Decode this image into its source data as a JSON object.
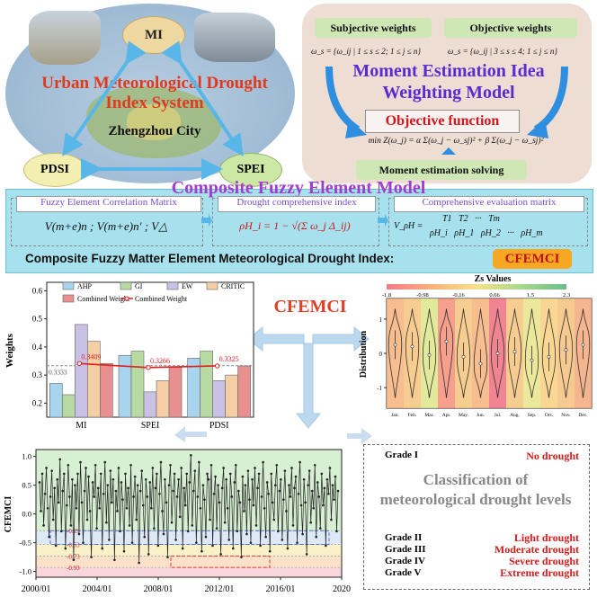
{
  "index_system": {
    "title_line1": "Urban Meteorological Drought",
    "title_line2": "Index System",
    "city": "Zhengzhou City",
    "nodes": [
      "MI",
      "PDSI",
      "SPEI"
    ]
  },
  "weighting": {
    "subjective": "Subjective weights",
    "objective": "Objective weights",
    "formula_subjective": "ω_s = {ω_ij | 1 ≤ s ≤ 2; 1 ≤ j ≤ n}",
    "formula_objective": "ω_s = {ω_ij | 3 ≤ s ≤ 4; 1 ≤ j ≤ n}",
    "title_line1": "Moment Estimation Idea",
    "title_line2": "Weighting Model",
    "objective_function": "Objective function",
    "min_formula": "min Z(ω_j) = α Σ(ω_j − ω_sj)² + β Σ(ω_j − ω_sj)²",
    "solving": "Moment estimation solving"
  },
  "composite": {
    "title": "Composite Fuzzy Element Model",
    "box1_title": "Fuzzy Element Correlation Matrix",
    "box1_formula": "V(m+e)n ; V(m+e)n′ ; V△",
    "box2_title": "Drought comprehensive index",
    "box2_formula": "ρH_i = 1 − √(Σ ω_j Δ_ij)",
    "box3_title": "Comprehensive evaluation matrix",
    "box3_header": "T1   T2   ···   Tm",
    "box3_row": "ρH_i   ρH_1   ρH_2   ···   ρH_m",
    "box3_label": "V_ρH =",
    "banner": "Composite Fuzzy Matter Element Meteorological Drought Index:",
    "badge": "CFEMCI"
  },
  "center_label": "CFEMCI",
  "weights_chart": {
    "ylabel": "Weights",
    "legend": [
      "AHP",
      "GI",
      "EW",
      "CRITIC",
      "Combined Weight",
      "Combined Weight"
    ],
    "baseline_label": "0.3333",
    "combined_labels": [
      "0.3409",
      "0.3266",
      "0.3325"
    ],
    "colors": {
      "AHP": "#a9d4ee",
      "GI": "#b7d9a2",
      "EW": "#c9c1e6",
      "CRITIC": "#f4cfa6",
      "Combined": "#e88f8f",
      "line": "#e02020"
    }
  },
  "violin_chart": {
    "colorbar_title": "Zs Values",
    "colorbar_ticks": [
      "-1.8",
      "-0.98",
      "-0.16",
      "0.66",
      "1.5",
      "2.3"
    ],
    "ylabel": "Distribution",
    "months": [
      "Jan.",
      "Feb.",
      "Mar.",
      "Apr.",
      "May.",
      "Jun.",
      "Jul.",
      "Aug.",
      "Sep.",
      "Oct.",
      "Nov.",
      "Dec."
    ],
    "month_colors": [
      "#f6b27a",
      "#f5c37d",
      "#dde58a",
      "#f38e78",
      "#f5c37d",
      "#f6b27a",
      "#ef6f7f",
      "#f5c37d",
      "#e8e48a",
      "#f8cf7e",
      "#f5bf7c",
      "#f3a87a"
    ]
  },
  "grade_panel": {
    "title_line1": "Classification of",
    "title_line2": "meteorological drought levels",
    "grades": [
      {
        "grade": "Grade I",
        "level": "No drought"
      },
      {
        "grade": "Grade II",
        "level": "Light drought"
      },
      {
        "grade": "Grade III",
        "level": "Moderate drought"
      },
      {
        "grade": "Grade IV",
        "level": "Severe drought"
      },
      {
        "grade": "Grade V",
        "level": "Extreme drought"
      }
    ]
  },
  "chart_data": [
    {
      "type": "bar",
      "categories": [
        "MI",
        "SPEI",
        "PDSI"
      ],
      "series": [
        {
          "name": "AHP",
          "values": [
            0.27,
            0.37,
            0.36
          ]
        },
        {
          "name": "GI",
          "values": [
            0.23,
            0.385,
            0.385
          ]
        },
        {
          "name": "EW",
          "values": [
            0.48,
            0.24,
            0.28
          ]
        },
        {
          "name": "CRITIC",
          "values": [
            0.42,
            0.28,
            0.3
          ]
        },
        {
          "name": "Combined Weight",
          "values": [
            0.3409,
            0.3266,
            0.3325
          ]
        }
      ],
      "line": {
        "name": "Combined Weight",
        "values": [
          0.3409,
          0.3266,
          0.3325
        ]
      },
      "baseline": 0.3333,
      "ylabel": "Weights",
      "ylim": [
        0.15,
        0.63
      ],
      "yticks": [
        "0.2",
        "0.3",
        "0.4",
        "0.5",
        "0.6"
      ],
      "legend": "top"
    },
    {
      "type": "line",
      "ylabel": "CFEMCI",
      "xticks": [
        "2000/01",
        "2004/01",
        "2008/01",
        "2012/01",
        "2016/01",
        "2020"
      ],
      "yticks": [
        "-1.0",
        "-0.5",
        "0.0",
        "0.5",
        "1.0"
      ],
      "ylim": [
        -1.1,
        1.12
      ],
      "xlim": [
        2000,
        2020
      ],
      "thresholds": [
        "-0.29",
        "-0.53",
        "-0.73",
        "-0.93"
      ],
      "threshold_values": [
        -0.29,
        -0.53,
        -0.73,
        -0.93
      ],
      "values": [
        0.55,
        0.05,
        0.7,
        -0.2,
        0.35,
        0.8,
        0.1,
        -0.4,
        0.3,
        0.75,
        -0.1,
        0.45,
        -0.55,
        0.6,
        0.2,
        0.95,
        -0.3,
        0.4,
        0.7,
        -0.6,
        0.15,
        0.85,
        0.3,
        -0.2,
        0.6,
        -0.8,
        0.5,
        0.1,
        0.7,
        -0.35,
        0.9,
        0.2,
        -0.5,
        0.4,
        0.8,
        -0.1,
        0.65,
        0.05,
        -0.75,
        0.55,
        0.3,
        0.85,
        -0.25,
        0.45,
        0.1,
        0.7,
        -0.6,
        0.35,
        0.9,
        -0.15,
        0.5,
        -0.45,
        0.75,
        0.2,
        0.6,
        -0.8,
        0.4,
        0.05,
        0.8,
        -0.3,
        0.55,
        0.25,
        -0.65,
        0.7,
        0.1,
        0.45,
        -0.2,
        0.85,
        -0.5,
        0.3,
        0.65,
        -0.1,
        0.5,
        -0.85,
        0.4,
        0.75,
        0.15,
        -0.4,
        0.6,
        0.3,
        -0.7,
        0.55,
        0.1,
        0.8,
        -0.25,
        0.45,
        0.7,
        -0.55,
        0.35,
        0.9,
        0.05,
        -0.35,
        0.6,
        0.2,
        -0.75,
        0.5,
        0.85,
        -0.15,
        0.4,
        0.7,
        -0.45,
        0.3,
        0.6,
        -0.05,
        0.8,
        -0.6,
        0.45,
        0.15,
        0.7,
        -0.3,
        0.55,
        1.02,
        -0.2,
        0.4,
        0.75,
        -0.5,
        0.3,
        0.9,
        0.1,
        -0.65,
        0.5,
        0.25,
        -0.4,
        0.7,
        0.6,
        -0.1,
        0.85,
        -0.55,
        0.35,
        0.65,
        -0.25,
        0.5,
        0.2,
        -0.7,
        0.45,
        0.8,
        -0.15,
        0.6,
        0.1,
        -0.45,
        0.7,
        0.3,
        -0.6,
        0.55,
        0.85,
        -0.3,
        0.4,
        0.2,
        -0.75,
        0.65,
        0.05,
        0.5,
        -0.35,
        0.75,
        0.25,
        -0.5,
        0.6,
        0.15,
        0.8,
        -0.2,
        0.45,
        0.7,
        -0.55,
        0.3,
        0.9,
        0.1,
        -0.4,
        0.55,
        0.35,
        -0.65,
        0.7,
        0.2,
        -0.1,
        0.5,
        0.85,
        -0.3,
        0.4,
        0.6,
        -0.45,
        0.25,
        0.75,
        0.05,
        -0.6,
        0.5,
        0.3,
        0.8,
        -0.2,
        0.45,
        0.65,
        -0.5,
        0.35,
        0.9,
        0.15,
        -0.35,
        0.6,
        0.2,
        -0.7,
        0.5,
        0.75,
        -0.15,
        0.4,
        0.1,
        0.85,
        -0.4,
        0.55,
        0.3,
        -0.25,
        0.7,
        0.15,
        0.45,
        -0.55,
        0.6,
        0.35,
        0.8,
        -0.1,
        0.5,
        0.25,
        0.65,
        -0.3,
        0.4
      ]
    },
    {
      "type": "other",
      "description_free": true,
      "categories": [
        "Jan.",
        "Feb.",
        "Mar.",
        "Apr.",
        "May.",
        "Jun.",
        "Jul.",
        "Aug.",
        "Sep.",
        "Oct.",
        "Nov.",
        "Dec."
      ],
      "ylabel": "Distribution",
      "yticks": [
        "-1",
        "0",
        "1"
      ],
      "ylim": [
        -1.6,
        1.6
      ],
      "medians": [
        0.25,
        0.2,
        -0.05,
        0.35,
        -0.1,
        -0.3,
        0.0,
        0.05,
        -0.2,
        -0.1,
        0.1,
        0.25
      ]
    }
  ]
}
